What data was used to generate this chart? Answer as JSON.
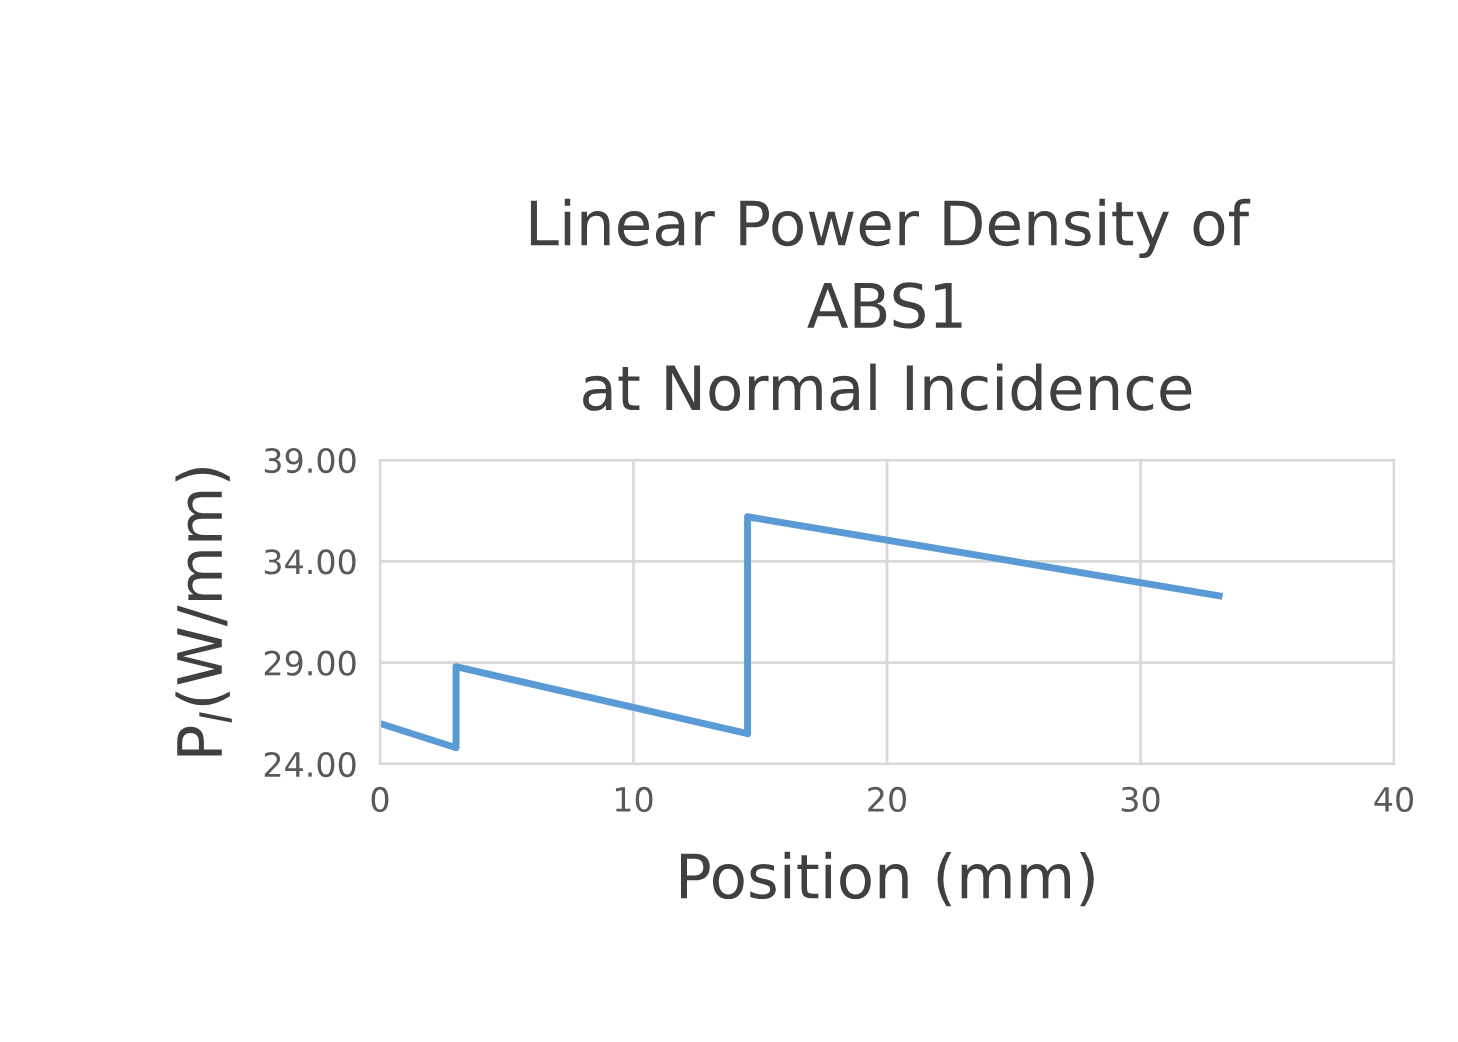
{
  "chart_data": {
    "type": "line",
    "title": "Linear Power Density of\nABS1\nat Normal Incidence",
    "xlabel": "Position (mm)",
    "ylabel": "P$_{l}$(W/mm)",
    "x": [
      0,
      3.0,
      3.0,
      14.5,
      14.5,
      33.1
    ],
    "series": [
      {
        "color": "#5b9bd5",
        "values": [
          26.0,
          24.8,
          28.8,
          25.5,
          36.2,
          32.3
        ]
      }
    ],
    "xlim": [
      0,
      40
    ],
    "xticks": [
      0,
      10,
      20,
      30,
      40
    ],
    "ylim": [
      24,
      39
    ],
    "yticks": [
      {
        "value": 24,
        "label": "24.00"
      },
      {
        "value": 29,
        "label": "29.00"
      },
      {
        "value": 34,
        "label": "34.00"
      },
      {
        "value": 39,
        "label": "39.00"
      }
    ],
    "grid": true,
    "marker": "none",
    "line_style": "solid"
  }
}
